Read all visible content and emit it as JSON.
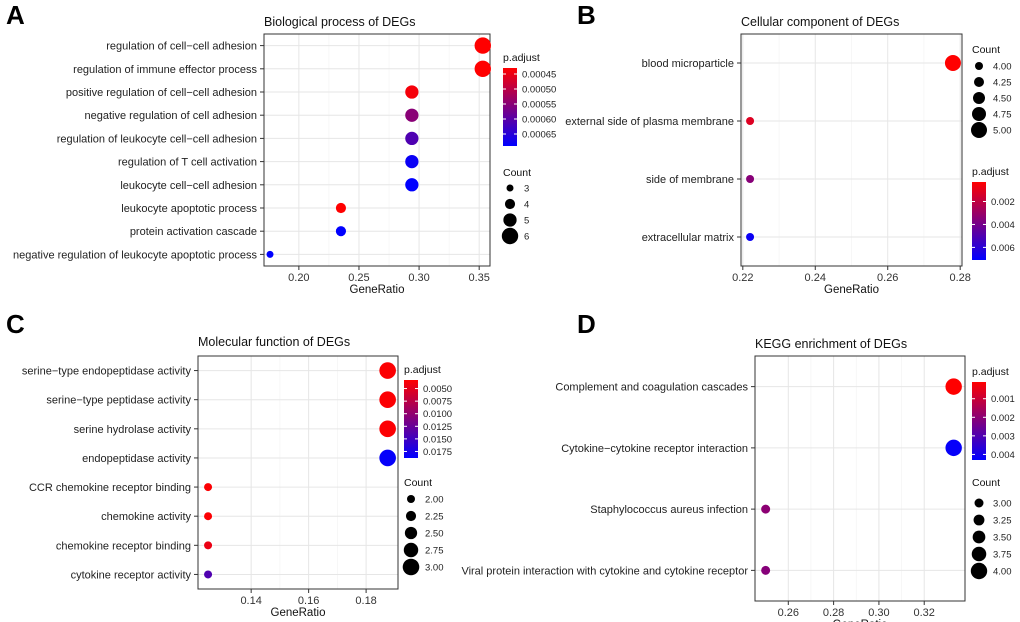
{
  "chart_data": [
    {
      "type": "scatter",
      "panel": "A",
      "title": "Biological process of DEGs",
      "xlabel": "GeneRatio",
      "xlim": [
        0.171,
        0.359
      ],
      "xticks": [
        "0.20",
        "0.25",
        "0.30",
        "0.35"
      ],
      "xtick_values": [
        0.2,
        0.25,
        0.3,
        0.35
      ],
      "categories": [
        "regulation of cell−cell adhesion",
        "regulation of immune effector process",
        "positive regulation of cell−cell adhesion",
        "negative regulation of cell adhesion",
        "regulation of leukocyte cell−cell adhesion",
        "regulation of T cell activation",
        "leukocyte cell−cell adhesion",
        "leukocyte apoptotic process",
        "protein activation cascade",
        "negative regulation of leukocyte apoptotic process"
      ],
      "gene_ratio": [
        0.353,
        0.353,
        0.294,
        0.294,
        0.294,
        0.294,
        0.294,
        0.235,
        0.235,
        0.176
      ],
      "count": [
        6,
        6,
        5,
        5,
        5,
        5,
        5,
        4,
        4,
        3
      ],
      "p_adjust": [
        0.00043,
        0.00043,
        0.00044,
        0.00055,
        0.00061,
        0.00068,
        0.00069,
        0.00043,
        0.00069,
        0.00069
      ],
      "color_legend": {
        "title": "p.adjust",
        "range": [
          0.00043,
          0.00069
        ],
        "labels": [
          "0.00045",
          "0.00050",
          "0.00055",
          "0.00060",
          "0.00065"
        ],
        "values": [
          0.00045,
          0.0005,
          0.00055,
          0.0006,
          0.00065
        ]
      },
      "size_legend": {
        "title": "Count",
        "labels": [
          "3",
          "4",
          "5",
          "6"
        ],
        "values": [
          3,
          4,
          5,
          6
        ],
        "range": [
          3,
          6
        ]
      }
    },
    {
      "type": "scatter",
      "panel": "B",
      "title": "Cellular component of DEGs",
      "xlabel": "GeneRatio",
      "xlim": [
        0.2195,
        0.2805
      ],
      "xticks": [
        "0.22",
        "0.24",
        "0.26",
        "0.28"
      ],
      "xtick_values": [
        0.22,
        0.24,
        0.26,
        0.28
      ],
      "categories": [
        "blood microparticle",
        "external side of plasma membrane",
        "side of membrane",
        "extracellular matrix"
      ],
      "gene_ratio": [
        0.278,
        0.222,
        0.222,
        0.222
      ],
      "count": [
        5,
        4,
        4,
        4
      ],
      "p_adjust": [
        0.0003,
        0.0012,
        0.0035,
        0.0068
      ],
      "color_legend": {
        "title": "p.adjust",
        "range": [
          0.0003,
          0.0071
        ],
        "labels": [
          "0.002",
          "0.004",
          "0.006"
        ],
        "values": [
          0.002,
          0.004,
          0.006
        ]
      },
      "size_legend": {
        "title": "Count",
        "labels": [
          "4.00",
          "4.25",
          "4.50",
          "4.75",
          "5.00"
        ],
        "values": [
          4,
          4.25,
          4.5,
          4.75,
          5
        ],
        "range": [
          4,
          5
        ]
      }
    },
    {
      "type": "scatter",
      "panel": "C",
      "title": "Molecular function of DEGs",
      "xlabel": "GeneRatio",
      "xlim": [
        0.1215,
        0.1911
      ],
      "xticks": [
        "0.14",
        "0.16",
        "0.18"
      ],
      "xtick_values": [
        0.14,
        0.16,
        0.18
      ],
      "categories": [
        "serine−type endopeptidase activity",
        "serine−type peptidase activity",
        "serine hydrolase activity",
        "endopeptidase activity",
        "CCR chemokine receptor binding",
        "chemokine activity",
        "chemokine receptor binding",
        "cytokine receptor activity"
      ],
      "gene_ratio": [
        0.1875,
        0.1875,
        0.1875,
        0.1875,
        0.125,
        0.125,
        0.125,
        0.125
      ],
      "count": [
        3,
        3,
        3,
        3,
        2,
        2,
        2,
        2
      ],
      "p_adjust": [
        0.0035,
        0.0035,
        0.0035,
        0.0185,
        0.0035,
        0.0035,
        0.0045,
        0.014
      ],
      "color_legend": {
        "title": "p.adjust",
        "range": [
          0.0033,
          0.0188
        ],
        "labels": [
          "0.0050",
          "0.0075",
          "0.0100",
          "0.0125",
          "0.0150",
          "0.0175"
        ],
        "values": [
          0.005,
          0.0075,
          0.01,
          0.0125,
          0.015,
          0.0175
        ]
      },
      "size_legend": {
        "title": "Count",
        "labels": [
          "2.00",
          "2.25",
          "2.50",
          "2.75",
          "3.00"
        ],
        "values": [
          2,
          2.25,
          2.5,
          2.75,
          3
        ],
        "range": [
          2,
          3
        ]
      }
    },
    {
      "type": "scatter",
      "panel": "D",
      "title": "KEGG enrichment of DEGs",
      "xlabel": "GeneRatio",
      "xlim": [
        0.2453,
        0.338
      ],
      "xticks": [
        "0.26",
        "0.28",
        "0.30",
        "0.32"
      ],
      "xtick_values": [
        0.26,
        0.28,
        0.3,
        0.32
      ],
      "categories": [
        "Complement and coagulation cascades",
        "Cytokine−cytokine receptor interaction",
        "Staphylococcus aureus infection",
        "Viral protein interaction with cytokine and cytokine receptor"
      ],
      "gene_ratio": [
        0.333,
        0.333,
        0.25,
        0.25
      ],
      "count": [
        4,
        4,
        3,
        3
      ],
      "p_adjust": [
        0.0001,
        0.0042,
        0.002,
        0.0021
      ],
      "color_legend": {
        "title": "p.adjust",
        "range": [
          0.0001,
          0.0043
        ],
        "labels": [
          "0.001",
          "0.002",
          "0.003",
          "0.004"
        ],
        "values": [
          0.001,
          0.002,
          0.003,
          0.004
        ]
      },
      "size_legend": {
        "title": "Count",
        "labels": [
          "3.00",
          "3.25",
          "3.50",
          "3.75",
          "4.00"
        ],
        "values": [
          3,
          3.25,
          3.5,
          3.75,
          4
        ],
        "range": [
          3,
          4
        ]
      }
    }
  ],
  "colors": {
    "low_padj": "#ff0000",
    "high_padj": "#0000ff",
    "panel_bg": "#ffffff",
    "grid": "#e6e6e6",
    "border": "#333333"
  }
}
